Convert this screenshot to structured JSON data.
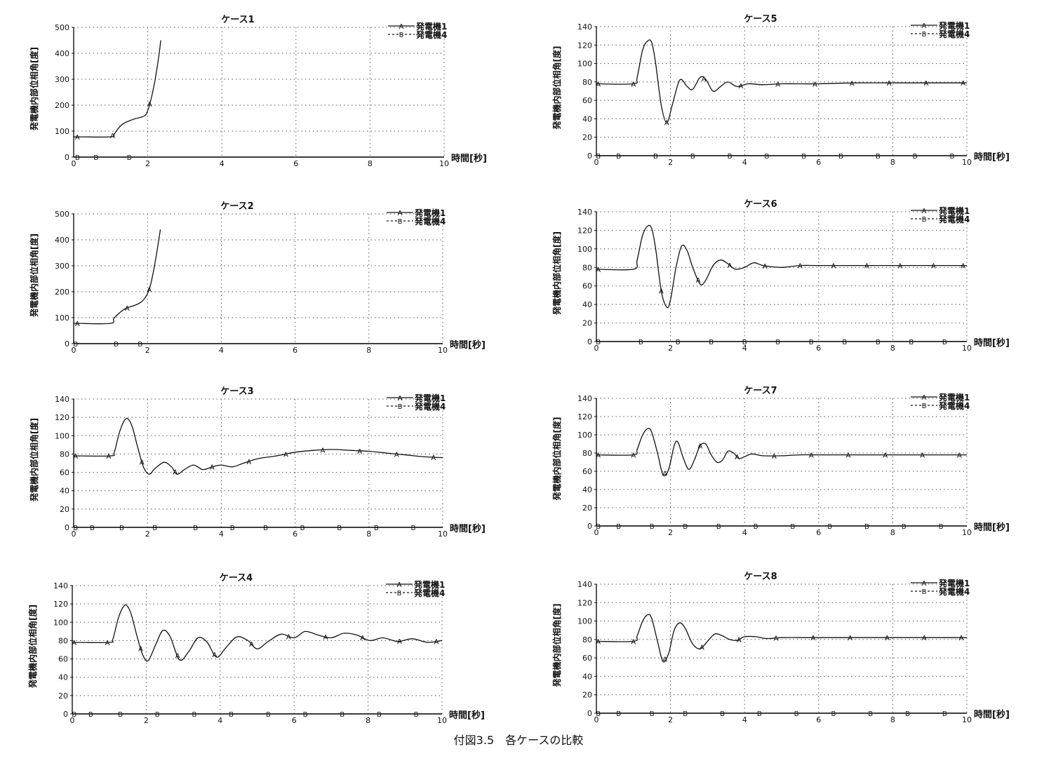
{
  "figure": {
    "caption": "付図3.5　各ケースの比較"
  },
  "chart_data": [
    {
      "type": "line",
      "title": "ケース1",
      "xlabel": "時間[秒]",
      "ylabel": "発電機内部位相角[度]",
      "xlim": [
        0,
        10
      ],
      "ylim": [
        0,
        500
      ],
      "xticks": [
        0,
        2,
        4,
        6,
        8,
        10
      ],
      "yticks": [
        0,
        100,
        200,
        300,
        400,
        500
      ],
      "grid": true,
      "legend": "top-right",
      "series": [
        {
          "name": "発電機1",
          "marker": "A",
          "style": "solid",
          "x": [
            0,
            0.1,
            1.0,
            1.1,
            1.3,
            1.6,
            1.9,
            2.0,
            2.1,
            2.2,
            2.3,
            2.35
          ],
          "y": [
            78,
            78,
            78,
            90,
            125,
            145,
            158,
            180,
            230,
            300,
            390,
            450
          ],
          "markers_x": [
            0.1,
            1.05,
            2.05
          ]
        },
        {
          "name": "発電機4",
          "marker": "B",
          "style": "dashed",
          "x": [
            0,
            10
          ],
          "y": [
            0,
            0
          ],
          "markers_x": [
            0.1,
            0.6,
            1.5
          ]
        }
      ]
    },
    {
      "type": "line",
      "title": "ケース2",
      "xlabel": "時間[秒]",
      "ylabel": "発電機内部位相角[度]",
      "xlim": [
        0,
        10
      ],
      "ylim": [
        0,
        500
      ],
      "xticks": [
        0,
        2,
        4,
        6,
        8,
        10
      ],
      "yticks": [
        0,
        100,
        200,
        300,
        400,
        500
      ],
      "grid": true,
      "legend": "top-right",
      "series": [
        {
          "name": "発電機1",
          "marker": "A",
          "style": "solid",
          "x": [
            0,
            0.1,
            1.0,
            1.1,
            1.4,
            1.7,
            1.9,
            2.05,
            2.15,
            2.25,
            2.35
          ],
          "y": [
            78,
            78,
            78,
            100,
            135,
            150,
            170,
            210,
            270,
            350,
            440
          ],
          "markers_x": [
            0.1,
            1.45,
            2.05
          ]
        },
        {
          "name": "発電機4",
          "marker": "B",
          "style": "dashed",
          "x": [
            0,
            10
          ],
          "y": [
            0,
            0
          ],
          "markers_x": [
            0.05,
            1.15,
            1.8
          ]
        }
      ]
    },
    {
      "type": "line",
      "title": "ケース3",
      "xlabel": "時間[秒]",
      "ylabel": "発電機内部位相角[度]",
      "xlim": [
        0,
        10
      ],
      "ylim": [
        0,
        140
      ],
      "xticks": [
        0,
        2,
        4,
        6,
        8,
        10
      ],
      "yticks": [
        0,
        20,
        40,
        60,
        80,
        100,
        120,
        140
      ],
      "grid": true,
      "legend": "top-right",
      "series": [
        {
          "name": "発電機1",
          "marker": "A",
          "style": "solid",
          "x": [
            0,
            1.0,
            1.1,
            1.25,
            1.4,
            1.5,
            1.6,
            1.75,
            1.9,
            2.05,
            2.2,
            2.45,
            2.65,
            2.8,
            3.0,
            3.25,
            3.5,
            3.75,
            4.0,
            4.3,
            4.6,
            5.0,
            5.5,
            6.0,
            6.5,
            7.0,
            7.5,
            8.0,
            8.5,
            9.0,
            9.5,
            10.0
          ],
          "y": [
            78,
            78,
            82,
            105,
            118,
            117,
            108,
            85,
            65,
            58,
            64,
            71,
            66,
            58,
            63,
            68,
            63,
            66,
            68,
            66,
            70,
            75,
            78,
            82,
            84,
            85,
            84,
            83,
            81,
            79,
            77,
            76
          ],
          "markers_x": [
            0.05,
            0.95,
            1.85,
            2.75,
            3.75,
            4.75,
            5.75,
            6.75,
            7.75,
            8.75,
            9.75
          ]
        },
        {
          "name": "発電機4",
          "marker": "B",
          "style": "dashed",
          "x": [
            0,
            10
          ],
          "y": [
            0,
            0
          ],
          "markers_x": [
            0.05,
            0.5,
            1.3,
            2.2,
            3.3,
            4.3,
            5.2,
            6.2,
            7.2,
            8.2,
            9.2
          ]
        }
      ]
    },
    {
      "type": "line",
      "title": "ケース4",
      "xlabel": "時間[秒]",
      "ylabel": "発電機内部位相角[度]",
      "xlim": [
        0,
        10
      ],
      "ylim": [
        0,
        140
      ],
      "xticks": [
        0,
        2,
        4,
        6,
        8,
        10
      ],
      "yticks": [
        0,
        20,
        40,
        60,
        80,
        100,
        120,
        140
      ],
      "grid": true,
      "legend": "top-right",
      "series": [
        {
          "name": "発電機1",
          "marker": "A",
          "style": "solid",
          "x": [
            0,
            1.0,
            1.1,
            1.25,
            1.4,
            1.5,
            1.6,
            1.75,
            1.9,
            2.05,
            2.25,
            2.45,
            2.65,
            2.9,
            3.15,
            3.4,
            3.65,
            3.9,
            4.15,
            4.45,
            4.75,
            5.0,
            5.3,
            5.65,
            6.0,
            6.3,
            6.65,
            7.0,
            7.35,
            7.7,
            8.05,
            8.4,
            8.8,
            9.2,
            9.6,
            10.0
          ],
          "y": [
            78,
            78,
            82,
            105,
            118,
            117,
            108,
            85,
            65,
            58,
            75,
            91,
            84,
            59,
            68,
            83,
            78,
            62,
            72,
            84,
            80,
            71,
            79,
            87,
            83,
            90,
            86,
            83,
            88,
            86,
            80,
            83,
            79,
            82,
            78,
            80
          ],
          "markers_x": [
            0.05,
            0.95,
            1.85,
            2.85,
            3.85,
            4.85,
            5.85,
            6.85,
            7.85,
            8.85,
            9.85
          ]
        },
        {
          "name": "発電機4",
          "marker": "B",
          "style": "dashed",
          "x": [
            0,
            10
          ],
          "y": [
            0,
            0
          ],
          "markers_x": [
            0.05,
            0.5,
            1.3,
            2.3,
            3.3,
            4.3,
            5.3,
            6.3,
            7.3,
            8.3,
            9.3
          ]
        }
      ]
    },
    {
      "type": "line",
      "title": "ケース5",
      "xlabel": "時間[秒]",
      "ylabel": "発電機内部位相角[度]",
      "xlim": [
        0,
        10
      ],
      "ylim": [
        0,
        140
      ],
      "xticks": [
        0,
        2,
        4,
        6,
        8,
        10
      ],
      "yticks": [
        0,
        20,
        40,
        60,
        80,
        100,
        120,
        140
      ],
      "grid": true,
      "legend": "top-right",
      "series": [
        {
          "name": "発電機1",
          "marker": "A",
          "style": "solid",
          "x": [
            0,
            1.0,
            1.1,
            1.25,
            1.4,
            1.5,
            1.6,
            1.75,
            1.9,
            2.05,
            2.25,
            2.45,
            2.6,
            2.8,
            2.95,
            3.15,
            3.35,
            3.55,
            3.8,
            4.1,
            4.5,
            5.0,
            5.5,
            6.0,
            7.0,
            8.0,
            9.0,
            10.0
          ],
          "y": [
            78,
            78,
            85,
            115,
            125,
            122,
            100,
            55,
            36,
            55,
            82,
            75,
            72,
            85,
            83,
            70,
            75,
            80,
            75,
            78,
            77,
            78,
            78,
            78,
            79,
            79,
            79,
            79
          ],
          "markers_x": [
            0.05,
            1.0,
            1.9,
            2.9,
            3.9,
            4.9,
            5.9,
            6.9,
            7.9,
            8.9,
            9.9
          ]
        },
        {
          "name": "発電機4",
          "marker": "B",
          "style": "dashed",
          "x": [
            0,
            10
          ],
          "y": [
            0,
            0
          ],
          "markers_x": [
            0.05,
            0.6,
            1.6,
            2.6,
            3.6,
            4.6,
            5.6,
            6.6,
            7.6,
            8.6,
            9.6
          ]
        }
      ]
    },
    {
      "type": "line",
      "title": "ケース6",
      "xlabel": "時間[秒]",
      "ylabel": "発電機内部位相角[度]",
      "xlim": [
        0,
        10
      ],
      "ylim": [
        0,
        140
      ],
      "xticks": [
        0,
        2,
        4,
        6,
        8,
        10
      ],
      "yticks": [
        0,
        20,
        40,
        60,
        80,
        100,
        120,
        140
      ],
      "grid": true,
      "legend": "top-right",
      "series": [
        {
          "name": "発電機1",
          "marker": "A",
          "style": "solid",
          "x": [
            0,
            1.0,
            1.1,
            1.25,
            1.4,
            1.5,
            1.6,
            1.75,
            1.9,
            2.0,
            2.15,
            2.3,
            2.45,
            2.6,
            2.8,
            2.95,
            3.15,
            3.35,
            3.55,
            3.75,
            4.0,
            4.25,
            4.5,
            5.0,
            5.5,
            6.0,
            7.0,
            8.0,
            9.0,
            10.0
          ],
          "y": [
            78,
            78,
            88,
            115,
            125,
            121,
            100,
            55,
            37,
            45,
            80,
            103,
            98,
            80,
            62,
            66,
            82,
            88,
            84,
            78,
            80,
            85,
            82,
            80,
            82,
            82,
            82,
            82,
            82,
            82
          ],
          "markers_x": [
            0.05,
            1.75,
            2.75,
            3.6,
            4.55,
            5.5,
            6.4,
            7.3,
            8.2,
            9.1,
            9.9
          ]
        },
        {
          "name": "発電機4",
          "marker": "B",
          "style": "dashed",
          "x": [
            0,
            10
          ],
          "y": [
            0,
            0
          ],
          "markers_x": [
            0.05,
            1.2,
            2.2,
            3.1,
            4.0,
            4.9,
            5.8,
            6.7,
            7.6,
            8.5,
            9.4
          ]
        }
      ]
    },
    {
      "type": "line",
      "title": "ケース7",
      "xlabel": "時間[秒]",
      "ylabel": "発電機内部位相角[度]",
      "xlim": [
        0,
        10
      ],
      "ylim": [
        0,
        140
      ],
      "xticks": [
        0,
        2,
        4,
        6,
        8,
        10
      ],
      "yticks": [
        0,
        20,
        40,
        60,
        80,
        100,
        120,
        140
      ],
      "grid": true,
      "legend": "top-right",
      "series": [
        {
          "name": "発電機1",
          "marker": "A",
          "style": "solid",
          "x": [
            0,
            1.0,
            1.1,
            1.25,
            1.4,
            1.5,
            1.65,
            1.8,
            1.95,
            2.1,
            2.2,
            2.35,
            2.5,
            2.65,
            2.8,
            2.95,
            3.1,
            3.25,
            3.4,
            3.55,
            3.7,
            3.85,
            4.0,
            4.2,
            4.5,
            5.0,
            5.5,
            6.0,
            7.0,
            8.0,
            9.0,
            10.0
          ],
          "y": [
            78,
            78,
            84,
            100,
            107,
            102,
            80,
            56,
            62,
            88,
            92,
            74,
            62,
            73,
            88,
            90,
            78,
            70,
            72,
            82,
            80,
            74,
            76,
            79,
            77,
            77,
            78,
            78,
            78,
            78,
            78,
            78
          ],
          "markers_x": [
            0.05,
            1.0,
            1.85,
            2.8,
            3.8,
            4.8,
            5.8,
            6.8,
            7.8,
            8.8,
            9.8
          ]
        },
        {
          "name": "発電機4",
          "marker": "B",
          "style": "dashed",
          "x": [
            0,
            10
          ],
          "y": [
            0,
            0
          ],
          "markers_x": [
            0.05,
            0.6,
            1.5,
            2.4,
            3.3,
            4.3,
            5.3,
            6.3,
            7.3,
            8.3,
            9.3
          ]
        }
      ]
    },
    {
      "type": "line",
      "title": "ケース8",
      "xlabel": "時間[秒]",
      "ylabel": "発電機内部位相角[度]",
      "xlim": [
        0,
        10
      ],
      "ylim": [
        0,
        140
      ],
      "xticks": [
        0,
        2,
        4,
        6,
        8,
        10
      ],
      "yticks": [
        0,
        20,
        40,
        60,
        80,
        100,
        120,
        140
      ],
      "grid": true,
      "legend": "top-right",
      "series": [
        {
          "name": "発電機1",
          "marker": "A",
          "style": "solid",
          "x": [
            0,
            1.0,
            1.1,
            1.25,
            1.4,
            1.5,
            1.65,
            1.8,
            1.95,
            2.1,
            2.25,
            2.4,
            2.6,
            2.8,
            3.0,
            3.2,
            3.4,
            3.6,
            3.8,
            4.0,
            4.3,
            4.6,
            5.0,
            5.5,
            6.0,
            7.0,
            8.0,
            9.0,
            10.0
          ],
          "y": [
            78,
            78,
            84,
            100,
            107,
            102,
            78,
            56,
            65,
            90,
            98,
            92,
            75,
            70,
            78,
            86,
            84,
            80,
            79,
            83,
            83,
            81,
            82,
            82,
            82,
            82,
            82,
            82,
            82
          ],
          "markers_x": [
            0.05,
            1.0,
            1.85,
            2.85,
            3.85,
            4.85,
            5.85,
            6.85,
            7.85,
            8.85,
            9.85
          ]
        },
        {
          "name": "発電機4",
          "marker": "B",
          "style": "dashed",
          "x": [
            0,
            10
          ],
          "y": [
            0,
            0
          ],
          "markers_x": [
            0.05,
            0.6,
            1.5,
            2.4,
            3.4,
            4.4,
            5.4,
            6.4,
            7.4,
            8.4,
            9.4
          ]
        }
      ]
    }
  ]
}
